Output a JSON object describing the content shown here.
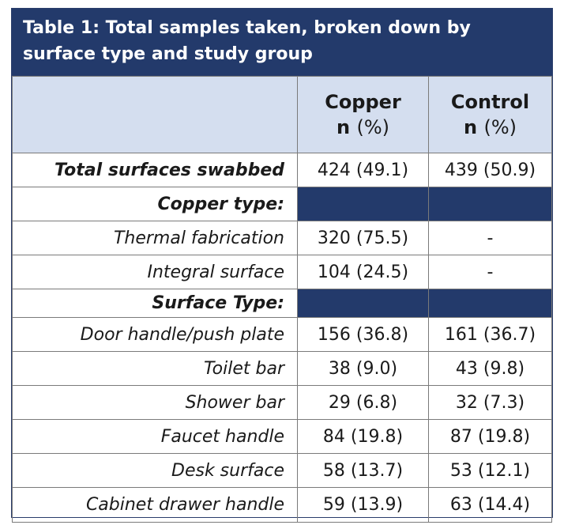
{
  "title": "Table 1: Total samples taken, broken down by surface type and study group",
  "columns": [
    {
      "name": "Copper",
      "sub_n": "n",
      "sub_pct": "(%)"
    },
    {
      "name": "Control",
      "sub_n": "n",
      "sub_pct": "(%)"
    }
  ],
  "rows": {
    "total": {
      "label": "Total surfaces swabbed",
      "copper": "424 (49.1)",
      "control": "439 (50.9)"
    },
    "copper_type_header": "Copper type:",
    "thermal": {
      "label": "Thermal fabrication",
      "copper": "320 (75.5)",
      "control": "-"
    },
    "integral": {
      "label": "Integral surface",
      "copper": "104 (24.5)",
      "control": "-"
    },
    "surface_type_header": "Surface Type:",
    "door": {
      "label": "Door handle/push plate",
      "copper": "156 (36.8)",
      "control": "161 (36.7)"
    },
    "toilet": {
      "label": "Toilet bar",
      "copper": "38 (9.0)",
      "control": "43 (9.8)"
    },
    "shower": {
      "label": "Shower bar",
      "copper": "29 (6.8)",
      "control": "32 (7.3)"
    },
    "faucet": {
      "label": "Faucet handle",
      "copper": "84 (19.8)",
      "control": "87 (19.8)"
    },
    "desk": {
      "label": "Desk surface",
      "copper": "58 (13.7)",
      "control": "53 (12.1)"
    },
    "cabinet": {
      "label": "Cabinet drawer handle",
      "copper": "59 (13.9)",
      "control": "63 (14.4)"
    }
  },
  "colors": {
    "header_band": "#233a6b",
    "column_header_bg": "#d4deef",
    "grid": "#7a7a7a"
  }
}
